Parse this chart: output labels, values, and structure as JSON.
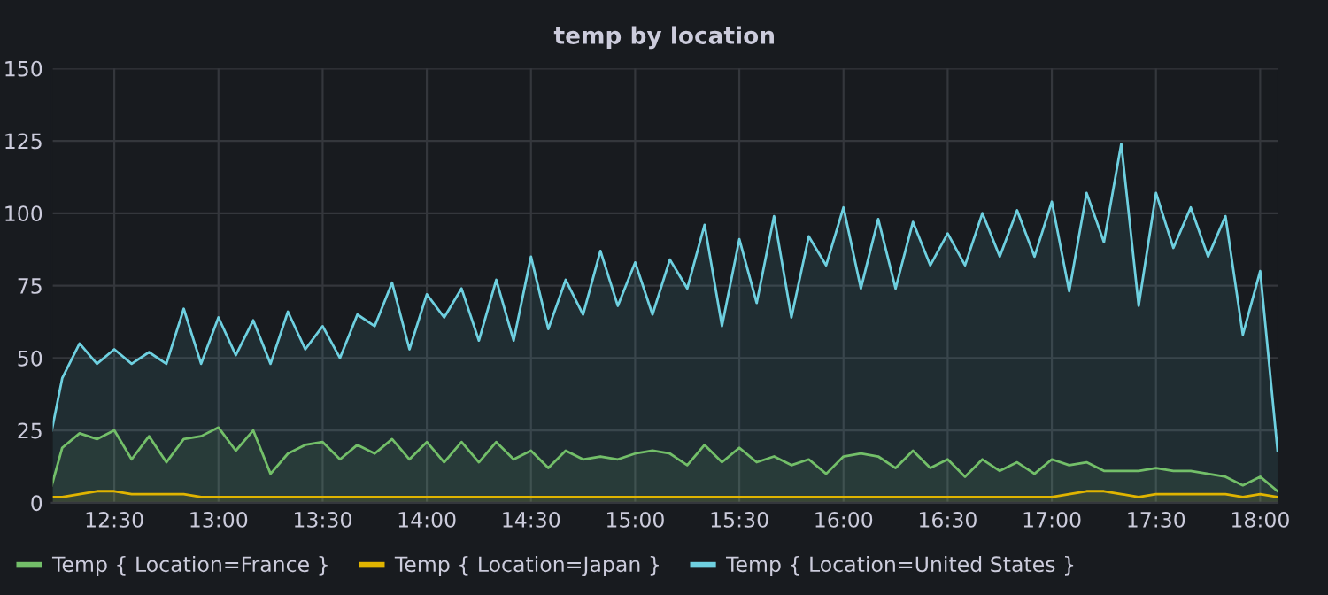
{
  "chart_data": {
    "type": "area",
    "title": "temp by location",
    "x": [
      12.2,
      12.25,
      12.3333,
      12.4167,
      12.5,
      12.5833,
      12.6667,
      12.75,
      12.8333,
      12.9167,
      13.0,
      13.0833,
      13.1667,
      13.25,
      13.3333,
      13.4167,
      13.5,
      13.5833,
      13.6667,
      13.75,
      13.8333,
      13.9167,
      14.0,
      14.0833,
      14.1667,
      14.25,
      14.3333,
      14.4167,
      14.5,
      14.5833,
      14.6667,
      14.75,
      14.8333,
      14.9167,
      15.0,
      15.0833,
      15.1667,
      15.25,
      15.3333,
      15.4167,
      15.5,
      15.5833,
      15.6667,
      15.75,
      15.8333,
      15.9167,
      16.0,
      16.0833,
      16.1667,
      16.25,
      16.3333,
      16.4167,
      16.5,
      16.5833,
      16.6667,
      16.75,
      16.8333,
      16.9167,
      17.0,
      17.0833,
      17.1667,
      17.25,
      17.3333,
      17.4167,
      17.5,
      17.5833,
      17.6667,
      17.75,
      17.8333,
      17.9167,
      18.0,
      18.0833
    ],
    "series": [
      {
        "name": "Temp { Location=France }",
        "color": "#73bf69",
        "values": [
          6,
          19,
          24,
          22,
          25,
          15,
          23,
          14,
          22,
          23,
          26,
          18,
          25,
          10,
          17,
          20,
          21,
          15,
          20,
          17,
          22,
          15,
          21,
          14,
          21,
          14,
          21,
          15,
          18,
          12,
          18,
          15,
          16,
          15,
          17,
          18,
          17,
          13,
          20,
          14,
          19,
          14,
          16,
          13,
          15,
          10,
          16,
          17,
          16,
          12,
          18,
          12,
          15,
          9,
          15,
          11,
          14,
          10,
          15,
          13,
          14,
          11,
          11,
          11,
          12,
          11,
          11,
          10,
          9,
          6,
          9,
          4
        ]
      },
      {
        "name": "Temp { Location=Japan }",
        "color": "#e0b400",
        "values": [
          2,
          2,
          3,
          4,
          4,
          3,
          3,
          3,
          3,
          2,
          2,
          2,
          2,
          2,
          2,
          2,
          2,
          2,
          2,
          2,
          2,
          2,
          2,
          2,
          2,
          2,
          2,
          2,
          2,
          2,
          2,
          2,
          2,
          2,
          2,
          2,
          2,
          2,
          2,
          2,
          2,
          2,
          2,
          2,
          2,
          2,
          2,
          2,
          2,
          2,
          2,
          2,
          2,
          2,
          2,
          2,
          2,
          2,
          2,
          3,
          4,
          4,
          3,
          2,
          3,
          3,
          3,
          3,
          3,
          2,
          3,
          2
        ]
      },
      {
        "name": "Temp { Location=United States }",
        "color": "#6ed0e0",
        "values": [
          25,
          43,
          55,
          48,
          53,
          48,
          52,
          48,
          67,
          48,
          64,
          51,
          63,
          48,
          66,
          53,
          61,
          50,
          65,
          61,
          76,
          53,
          72,
          64,
          74,
          56,
          77,
          56,
          85,
          60,
          77,
          65,
          87,
          68,
          83,
          65,
          84,
          74,
          96,
          61,
          91,
          69,
          99,
          64,
          92,
          82,
          102,
          74,
          98,
          74,
          97,
          82,
          93,
          82,
          100,
          85,
          101,
          85,
          104,
          73,
          107,
          90,
          124,
          68,
          107,
          88,
          102,
          85,
          99,
          58,
          80,
          18
        ]
      }
    ],
    "xlim": [
      12.2,
      18.0833
    ],
    "xticks": [
      {
        "value": 12.5,
        "label": "12:30"
      },
      {
        "value": 13.0,
        "label": "13:00"
      },
      {
        "value": 13.5,
        "label": "13:30"
      },
      {
        "value": 14.0,
        "label": "14:00"
      },
      {
        "value": 14.5,
        "label": "14:30"
      },
      {
        "value": 15.0,
        "label": "15:00"
      },
      {
        "value": 15.5,
        "label": "15:30"
      },
      {
        "value": 16.0,
        "label": "16:00"
      },
      {
        "value": 16.5,
        "label": "16:30"
      },
      {
        "value": 17.0,
        "label": "17:00"
      },
      {
        "value": 17.5,
        "label": "17:30"
      },
      {
        "value": 18.0,
        "label": "18:00"
      }
    ],
    "ylim": [
      0,
      150
    ],
    "yticks": [
      0,
      25,
      50,
      75,
      100,
      125,
      150
    ],
    "grid": true,
    "legend": "bottom"
  }
}
